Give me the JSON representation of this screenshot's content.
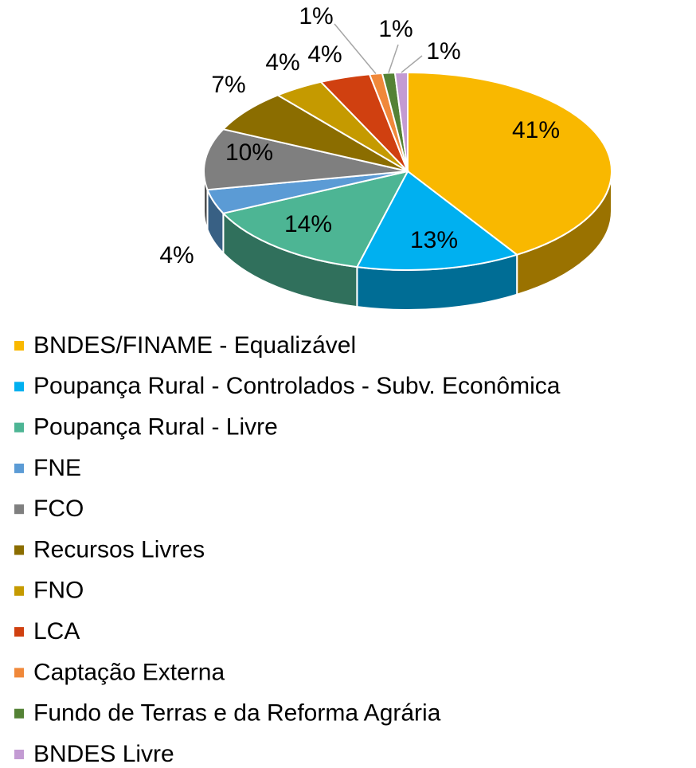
{
  "chart_data": {
    "type": "pie",
    "categories": [
      "BNDES/FINAME - Equalizável",
      "Poupança Rural - Controlados - Subv. Econômica",
      "Poupança Rural - Livre",
      "FNE",
      "FCO",
      "Recursos Livres",
      "FNO",
      "LCA",
      "Captação Externa",
      "Fundo de Terras e da Reforma Agrária",
      "BNDES Livre"
    ],
    "values": [
      41,
      13,
      14,
      4,
      10,
      7,
      4,
      4,
      1,
      1,
      1
    ],
    "value_labels": [
      "41%",
      "13%",
      "14%",
      "4%",
      "10%",
      "7%",
      "4%",
      "4%",
      "1%",
      "1%",
      "1%"
    ],
    "colors": [
      "#f9b800",
      "#00b0f0",
      "#4db594",
      "#5b9bd5",
      "#7f7f7f",
      "#8b6d00",
      "#c59a00",
      "#d04010",
      "#f0883a",
      "#548235",
      "#c39bd3"
    ],
    "legend": "bottom"
  }
}
